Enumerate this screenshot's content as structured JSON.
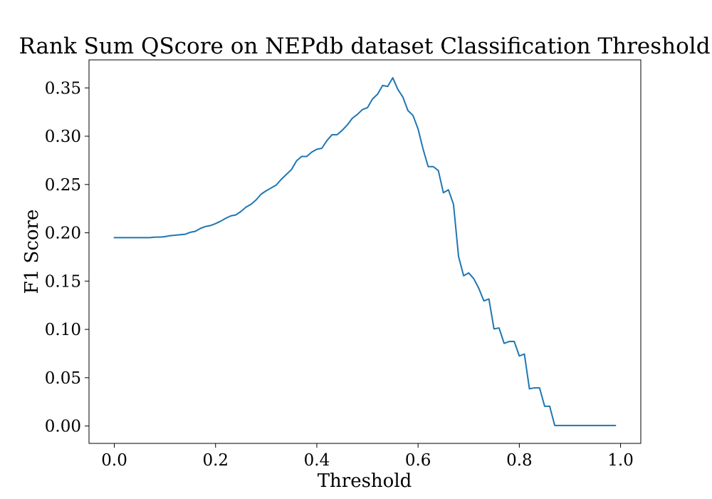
{
  "chart_data": {
    "type": "line",
    "title": "Rank Sum QScore on NEPdb dataset Classification Threshold",
    "xlabel": "Threshold",
    "ylabel": "F1 Score",
    "xlim": [
      -0.05,
      1.04
    ],
    "ylim": [
      -0.018,
      0.379
    ],
    "xticks": [
      0.0,
      0.2,
      0.4,
      0.6,
      0.8,
      1.0
    ],
    "xtick_labels": [
      "0.0",
      "0.2",
      "0.4",
      "0.6",
      "0.8",
      "1.0"
    ],
    "yticks": [
      0.0,
      0.05,
      0.1,
      0.15,
      0.2,
      0.25,
      0.3,
      0.35
    ],
    "ytick_labels": [
      "0.00",
      "0.05",
      "0.10",
      "0.15",
      "0.20",
      "0.25",
      "0.30",
      "0.35"
    ],
    "grid": false,
    "legend": "none",
    "series": [
      {
        "color": "#1f77b4",
        "x": [
          0.0,
          0.01,
          0.02,
          0.03,
          0.04,
          0.05,
          0.06,
          0.07,
          0.08,
          0.09,
          0.1,
          0.11,
          0.12,
          0.13,
          0.14,
          0.15,
          0.16,
          0.17,
          0.18,
          0.19,
          0.2,
          0.21,
          0.22,
          0.23,
          0.24,
          0.25,
          0.26,
          0.27,
          0.28,
          0.29,
          0.3,
          0.31,
          0.32,
          0.33,
          0.34,
          0.35,
          0.36,
          0.37,
          0.38,
          0.39,
          0.4,
          0.41,
          0.42,
          0.43,
          0.44,
          0.45,
          0.46,
          0.47,
          0.48,
          0.49,
          0.5,
          0.51,
          0.52,
          0.53,
          0.54,
          0.55,
          0.56,
          0.57,
          0.58,
          0.59,
          0.6,
          0.61,
          0.62,
          0.63,
          0.64,
          0.65,
          0.66,
          0.67,
          0.68,
          0.69,
          0.7,
          0.71,
          0.72,
          0.73,
          0.74,
          0.75,
          0.76,
          0.77,
          0.78,
          0.79,
          0.8,
          0.81,
          0.82,
          0.83,
          0.84,
          0.85,
          0.86,
          0.87,
          0.88,
          0.89,
          0.9,
          0.91,
          0.92,
          0.93,
          0.94,
          0.95,
          0.96,
          0.97,
          0.98,
          0.99
        ],
        "y": [
          0.195,
          0.195,
          0.195,
          0.195,
          0.195,
          0.195,
          0.195,
          0.195,
          0.1955,
          0.1955,
          0.196,
          0.197,
          0.1975,
          0.198,
          0.1985,
          0.2005,
          0.2015,
          0.2045,
          0.2065,
          0.2075,
          0.2095,
          0.212,
          0.215,
          0.2175,
          0.2185,
          0.222,
          0.2265,
          0.2295,
          0.234,
          0.24,
          0.2435,
          0.2465,
          0.2495,
          0.2555,
          0.2605,
          0.2655,
          0.2745,
          0.279,
          0.279,
          0.2835,
          0.2865,
          0.2875,
          0.2955,
          0.3015,
          0.3015,
          0.306,
          0.3115,
          0.3185,
          0.3225,
          0.3275,
          0.3295,
          0.3385,
          0.3435,
          0.3525,
          0.3515,
          0.3605,
          0.3485,
          0.3405,
          0.3265,
          0.3215,
          0.3075,
          0.2865,
          0.2685,
          0.2685,
          0.2645,
          0.2415,
          0.2445,
          0.2295,
          0.1755,
          0.1555,
          0.1585,
          0.1525,
          0.1425,
          0.1295,
          0.1315,
          0.1005,
          0.1015,
          0.0855,
          0.0875,
          0.0875,
          0.0725,
          0.0745,
          0.0385,
          0.0395,
          0.0395,
          0.0205,
          0.0205,
          0.0005,
          0.0005,
          0.0005,
          0.0005,
          0.0005,
          0.0005,
          0.0005,
          0.0005,
          0.0005,
          0.0005,
          0.0005,
          0.0005,
          0.0005
        ]
      }
    ]
  }
}
